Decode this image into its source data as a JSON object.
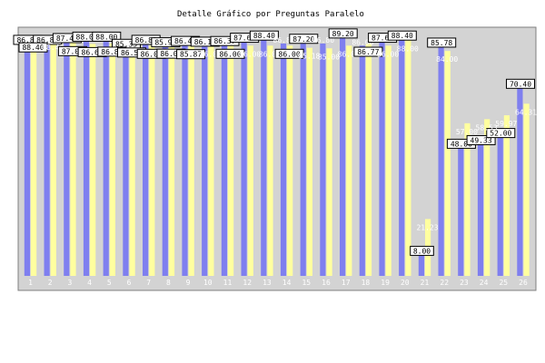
{
  "chart_data": {
    "type": "bar",
    "title": "Detalle Gráfico por Preguntas Paralelo",
    "xlabel": "",
    "ylabel": "",
    "ylim": [
      0,
      95
    ],
    "yticks": [
      "10",
      "20",
      "30",
      "40",
      "50",
      "60",
      "70",
      "80"
    ],
    "categories": [
      "1",
      "2",
      "3",
      "4",
      "5",
      "6",
      "7",
      "8",
      "9",
      "10",
      "11",
      "12",
      "13",
      "14",
      "15",
      "16",
      "17",
      "18",
      "19",
      "20",
      "21",
      "22",
      "23",
      "24",
      "25",
      "26"
    ],
    "grid": false,
    "legend": "none",
    "series": [
      {
        "color": "#7f7fef",
        "values": [
          86.8,
          86.8,
          87.47,
          88.0,
          88.0,
          85.33,
          86.8,
          85.9,
          86.4,
          86.13,
          86.37,
          87.6,
          88.4,
          86.8,
          87.2,
          86.8,
          89.2,
          86.0,
          87.6,
          88.4,
          8.0,
          85.78,
          48.0,
          49.33,
          52.0,
          70.4
        ],
        "labels": [
          "86.80",
          "86.80",
          "87.47",
          "88.00",
          "88.00",
          "85.33",
          "86.80",
          "85.90",
          "86.40",
          "86.13",
          "86.37",
          "87.60",
          "88.40",
          "86.80",
          "87.20",
          "86.80",
          "89.20",
          "86.00",
          "87.60",
          "88.40",
          "8.00",
          "85.78",
          "48.00",
          "49.33",
          "52.00",
          "70.40"
        ]
      },
      {
        "color": "#ffff9f",
        "values": [
          88.4,
          88.4,
          87.0,
          86.65,
          86.81,
          86.5,
          86.0,
          86.05,
          85.87,
          86.0,
          86.0,
          86.0,
          86.0,
          86.0,
          85.18,
          85.0,
          86.0,
          86.77,
          86.0,
          88.0,
          21.23,
          84.0,
          57.0,
          58.53,
          59.97,
          64.31
        ],
        "labels": [
          "88.40",
          "88.40",
          "87.00",
          "86.65",
          "86.81",
          "86.50",
          "86.00",
          "86.05",
          "85.87",
          "86.00",
          "86.00",
          "86.00",
          "86.00",
          "86.00",
          "85.18",
          "85.00",
          "86.00",
          "86.77",
          "86.00",
          "88.00",
          "21.23",
          "84.00",
          "57.00",
          "58.53",
          "59.97",
          "64.31"
        ]
      }
    ],
    "boxed_labels": [
      {
        "cat": 0,
        "series": 0
      },
      {
        "cat": 0,
        "series": 1
      },
      {
        "cat": 1,
        "series": 0
      },
      {
        "cat": 2,
        "series": 0
      },
      {
        "cat": 2,
        "series": 1
      },
      {
        "cat": 3,
        "series": 0
      },
      {
        "cat": 3,
        "series": 1
      },
      {
        "cat": 4,
        "series": 0
      },
      {
        "cat": 4,
        "series": 1
      },
      {
        "cat": 5,
        "series": 0
      },
      {
        "cat": 5,
        "series": 1
      },
      {
        "cat": 6,
        "series": 0
      },
      {
        "cat": 6,
        "series": 1
      },
      {
        "cat": 7,
        "series": 0
      },
      {
        "cat": 7,
        "series": 1
      },
      {
        "cat": 8,
        "series": 0
      },
      {
        "cat": 8,
        "series": 1
      },
      {
        "cat": 9,
        "series": 0
      },
      {
        "cat": 10,
        "series": 0
      },
      {
        "cat": 10,
        "series": 1
      },
      {
        "cat": 11,
        "series": 0
      },
      {
        "cat": 12,
        "series": 0
      },
      {
        "cat": 13,
        "series": 1
      },
      {
        "cat": 14,
        "series": 0
      },
      {
        "cat": 16,
        "series": 0
      },
      {
        "cat": 17,
        "series": 1
      },
      {
        "cat": 18,
        "series": 0
      },
      {
        "cat": 19,
        "series": 0
      },
      {
        "cat": 20,
        "series": 0
      },
      {
        "cat": 21,
        "series": 0
      },
      {
        "cat": 22,
        "series": 0
      },
      {
        "cat": 23,
        "series": 0
      },
      {
        "cat": 24,
        "series": 0
      },
      {
        "cat": 25,
        "series": 0
      }
    ],
    "colors": {
      "plot_background": "#d3d3d3",
      "axis_text": "#ffffff",
      "title_text": "#000000",
      "frame": "#7f7f7f"
    }
  }
}
